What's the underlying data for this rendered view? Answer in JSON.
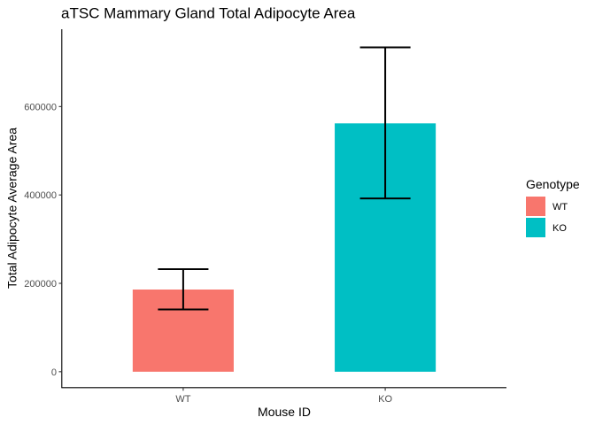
{
  "chart_data": {
    "type": "bar",
    "title": "aTSC Mammary Gland Total Adipocyte Area",
    "xlabel": "Mouse ID",
    "ylabel": "Total Adipocyte Average Area",
    "categories": [
      "WT",
      "KO"
    ],
    "values": [
      186000,
      562000
    ],
    "error_low": [
      141000,
      392000
    ],
    "error_high": [
      232000,
      734000
    ],
    "colors": [
      "#F8766D",
      "#00BFC4"
    ],
    "ylim": [
      -36000,
      775000
    ],
    "yticks": [
      0,
      200000,
      400000,
      600000
    ],
    "ytick_labels": [
      "0",
      "200000",
      "400000",
      "600000"
    ],
    "grid": false,
    "legend": {
      "title": "Genotype",
      "placement": "right",
      "entries": [
        {
          "label": "WT",
          "color": "#F8766D"
        },
        {
          "label": "KO",
          "color": "#00BFC4"
        }
      ]
    }
  }
}
